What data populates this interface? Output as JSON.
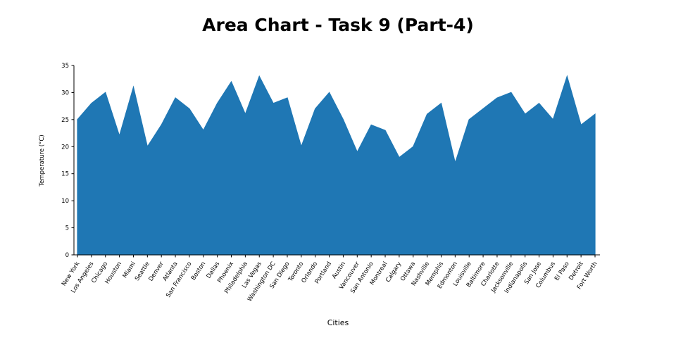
{
  "chart_data": {
    "type": "area",
    "title": "Area Chart - Task 9 (Part-4)",
    "xlabel": "Cities",
    "ylabel": "Temperature (°C)",
    "ylim": [
      0,
      35
    ],
    "yticks": [
      0,
      5,
      10,
      15,
      20,
      25,
      30,
      35
    ],
    "grid": false,
    "legend_position": "none",
    "fill_color": "#1f77b4",
    "axis_color": "#000000",
    "background_color": "#ffffff",
    "categories": [
      "New York",
      "Los Angeles",
      "Chicago",
      "Houston",
      "Miami",
      "Seattle",
      "Denver",
      "Atlanta",
      "San Francisco",
      "Boston",
      "Dallas",
      "Phoenix",
      "Philadelphia",
      "Las Vegas",
      "Washington DC",
      "San Diego",
      "Toronto",
      "Orlando",
      "Portland",
      "Austin",
      "Vancouver",
      "San Antonio",
      "Montreal",
      "Calgary",
      "Ottawa",
      "Nashville",
      "Memphis",
      "Edmonton",
      "Louisville",
      "Baltimore",
      "Charlotte",
      "Jacksonville",
      "Indianapolis",
      "San Jose",
      "Columbus",
      "El Paso",
      "Detroit",
      "Fort Worth"
    ],
    "values": [
      25,
      28,
      30,
      22,
      31,
      20,
      24,
      29,
      27,
      23,
      28,
      32,
      26,
      33,
      28,
      29,
      20,
      27,
      30,
      25,
      19,
      24,
      23,
      18,
      20,
      26,
      28,
      17,
      25,
      27,
      29,
      30,
      26,
      28,
      25,
      33,
      24,
      26
    ]
  }
}
